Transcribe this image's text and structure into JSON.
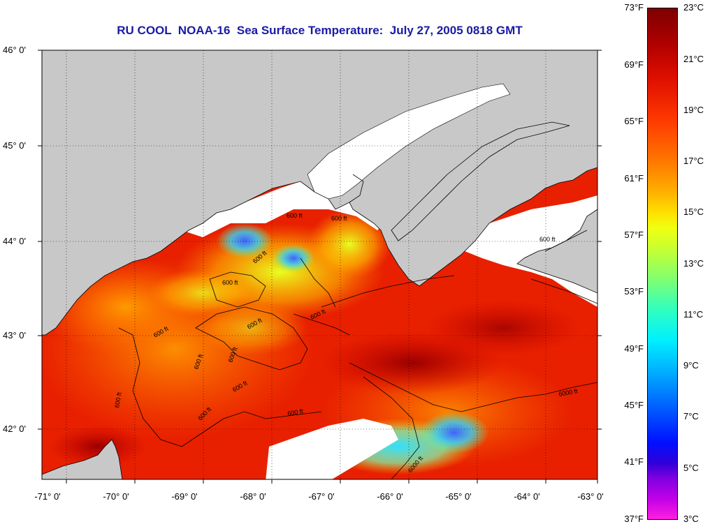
{
  "title": "RU COOL  NOAA-16  Sea Surface Temperature:  July 27, 2005 0818 GMT",
  "axes": {
    "latitude_labels": [
      "46° 0'",
      "45° 0'",
      "44° 0'",
      "43° 0'",
      "42° 0'"
    ],
    "longitude_labels": [
      "-71° 0'",
      "-70° 0'",
      "-69° 0'",
      "-68° 0'",
      "-67° 0'",
      "-66° 0'",
      "-65° 0'",
      "-64° 0'",
      "-63° 0'"
    ]
  },
  "colorbar": {
    "fahrenheit_labels": [
      "73°F",
      "69°F",
      "65°F",
      "61°F",
      "57°F",
      "53°F",
      "49°F",
      "45°F",
      "41°F",
      "37°F"
    ],
    "celsius_labels": [
      "23°C",
      "21°C",
      "19°C",
      "17°C",
      "15°C",
      "13°C",
      "11°C",
      "9°C",
      "7°C",
      "5°C",
      "3°C"
    ]
  },
  "contour_labels": [
    "600 ft",
    "600 ft",
    "600 ft",
    "600 ft",
    "600 ft",
    "600 ft",
    "600 ft",
    "600 ft",
    "600 ft",
    "600 ft",
    "600 ft",
    "600 ft",
    "600 ft",
    "600 ft",
    "6000 ft",
    "6000 ft"
  ],
  "colors": {
    "land": "#c8c8c8",
    "cloud": "#ffffff",
    "title": "#1a1aa6"
  }
}
